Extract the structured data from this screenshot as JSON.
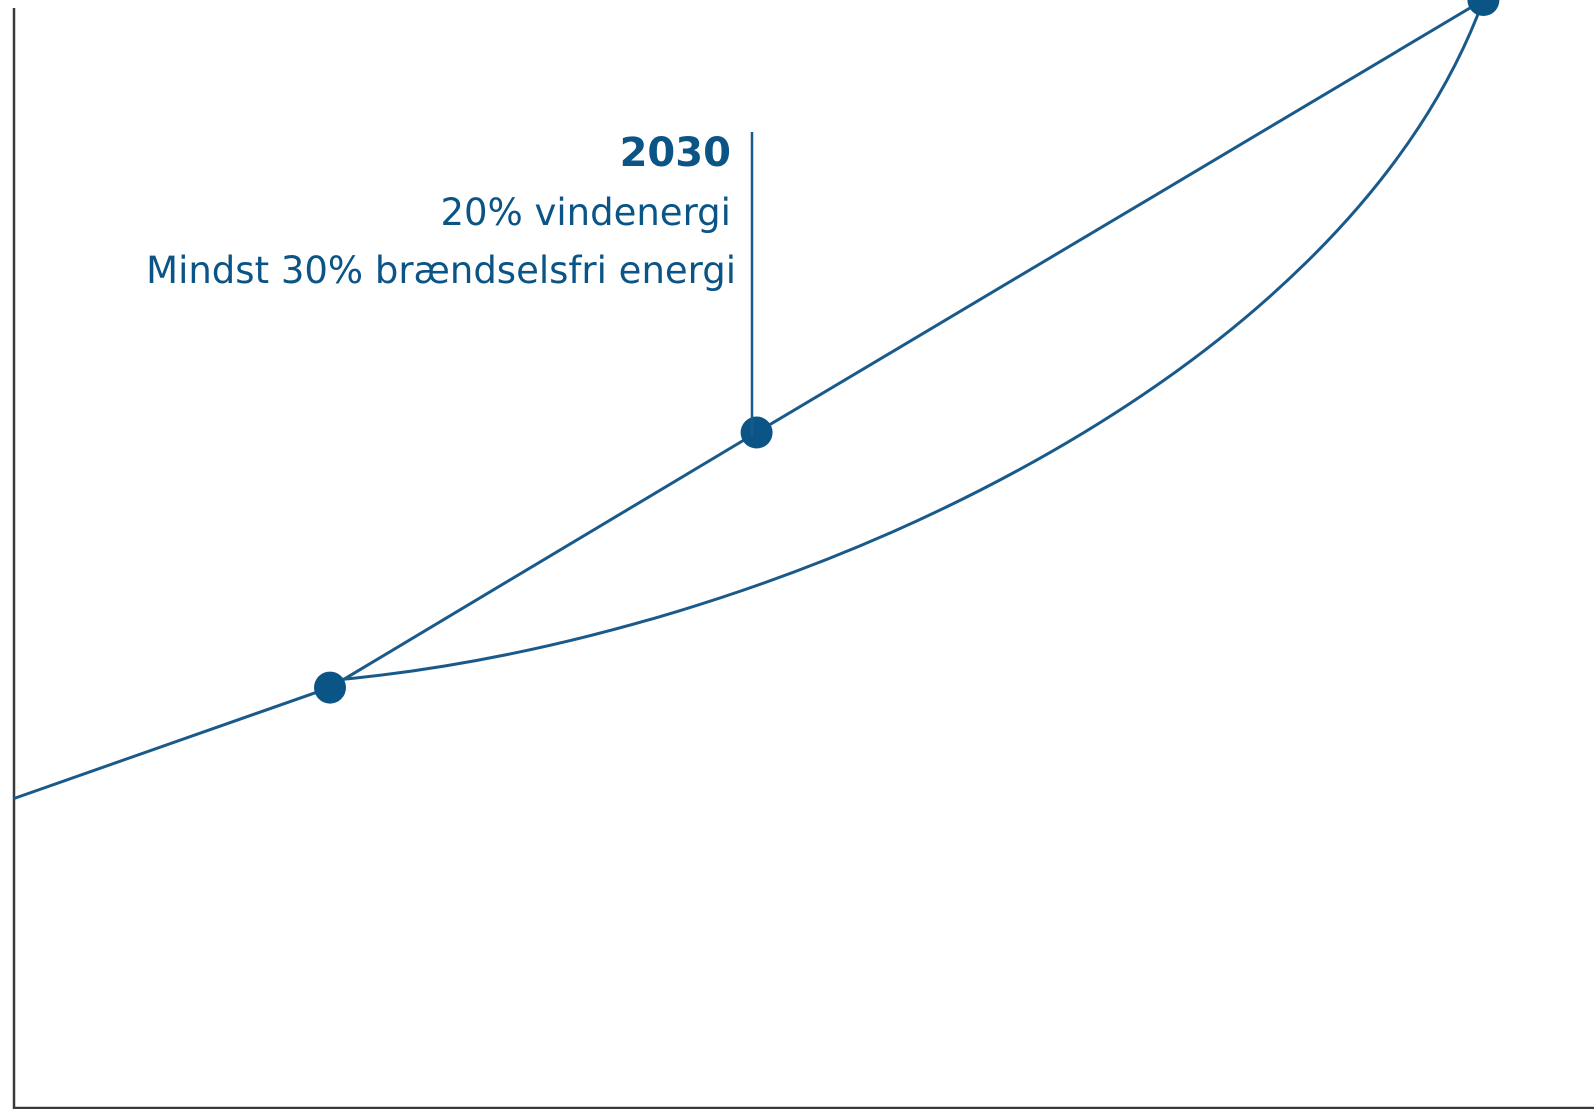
{
  "chart_data": {
    "type": "line",
    "title": "",
    "xlabel": "",
    "ylabel": "",
    "grid": false,
    "legend": "none",
    "accent_color": "#0b5486",
    "axis_color": "#3a3a3a",
    "series": [
      {
        "values": [
          0.28,
          0.38,
          0.61,
          1.0
        ]
      },
      {
        "values": [
          0.38,
          0.4,
          0.48,
          0.61,
          1.0
        ]
      }
    ],
    "points": [
      {
        "x": 0.2,
        "y": 0.38
      },
      {
        "x": 0.47,
        "y": 0.61
      },
      {
        "x": 0.93,
        "y": 1.0
      }
    ],
    "annotation": {
      "title": "2030",
      "lines": [
        "20% vindenergi",
        "Mindst 30% brændselsfri energi"
      ]
    }
  }
}
